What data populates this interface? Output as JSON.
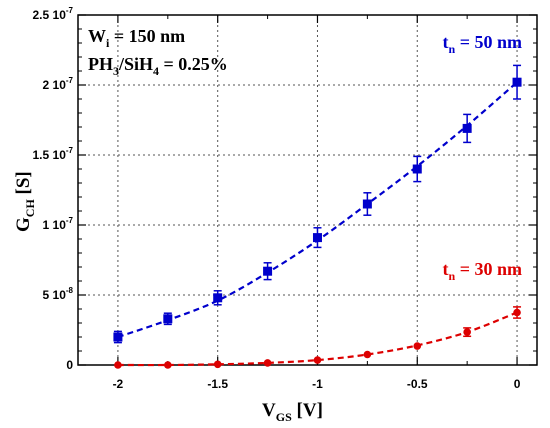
{
  "chart_data": {
    "type": "scatter",
    "xlabel": {
      "main": "V",
      "sub": "GS",
      "unit": " [V]"
    },
    "ylabel": {
      "main": "G",
      "sub": "CH",
      "unit": " [S]"
    },
    "xlim": [
      -2.2,
      0.1
    ],
    "ylim": [
      0,
      2.5e-07
    ],
    "x_ticks": [
      {
        "value": -2,
        "label": "-2"
      },
      {
        "value": -1.5,
        "label": "-1.5"
      },
      {
        "value": -1,
        "label": "-1"
      },
      {
        "value": -0.5,
        "label": "-0.5"
      },
      {
        "value": 0,
        "label": "0"
      }
    ],
    "y_ticks": [
      {
        "value": 0,
        "mant": "0",
        "exp": ""
      },
      {
        "value": 5e-08,
        "mant": "5 10",
        "exp": "-8"
      },
      {
        "value": 1e-07,
        "mant": "1 10",
        "exp": "-7"
      },
      {
        "value": 1.5e-07,
        "mant": "1.5 10",
        "exp": "-7"
      },
      {
        "value": 2e-07,
        "mant": "2 10",
        "exp": "-7"
      },
      {
        "value": 2.5e-07,
        "mant": "2.5 10",
        "exp": "-7"
      }
    ],
    "grid": true,
    "series": [
      {
        "name": {
          "main": "t",
          "sub": "n",
          "rest": " = 50 nm"
        },
        "color": "#0000cc",
        "marker": "square",
        "x": [
          -2,
          -1.75,
          -1.5,
          -1.25,
          -1,
          -0.75,
          -0.5,
          -0.25,
          0
        ],
        "y": [
          2e-08,
          3.3e-08,
          4.8e-08,
          6.7e-08,
          9.1e-08,
          1.15e-07,
          1.4e-07,
          1.69e-07,
          2.02e-07
        ],
        "err": [
          4e-09,
          4e-09,
          5e-09,
          6e-09,
          7e-09,
          8e-09,
          9e-09,
          1e-08,
          1.2e-08
        ],
        "fit": [
          2e-08,
          3.2e-08,
          4.6e-08,
          6.6e-08,
          8.9e-08,
          1.15e-07,
          1.42e-07,
          1.71e-07,
          2.02e-07
        ]
      },
      {
        "name": {
          "main": "t",
          "sub": "n",
          "rest": " = 30 nm"
        },
        "color": "#dd0000",
        "marker": "circle",
        "x": [
          -2,
          -1.75,
          -1.5,
          -1.25,
          -1,
          -0.75,
          -0.5,
          -0.25,
          0
        ],
        "y": [
          0,
          0,
          5e-10,
          1.5e-09,
          3.5e-09,
          7.5e-09,
          1.35e-08,
          2.35e-08,
          3.75e-08
        ],
        "err": [
          0,
          0,
          0,
          0,
          0,
          0,
          0,
          3e-09,
          4e-09
        ],
        "fit": [
          0,
          0,
          5e-10,
          1.5e-09,
          3.5e-09,
          7.5e-09,
          1.4e-08,
          2.35e-08,
          3.75e-08
        ]
      }
    ],
    "annotations": [
      {
        "main": "W",
        "sub": "i",
        "rest": " = 150 nm"
      },
      {
        "parts": [
          "PH",
          "3",
          "/SiH",
          "4",
          "  = 0.25%"
        ]
      }
    ]
  }
}
